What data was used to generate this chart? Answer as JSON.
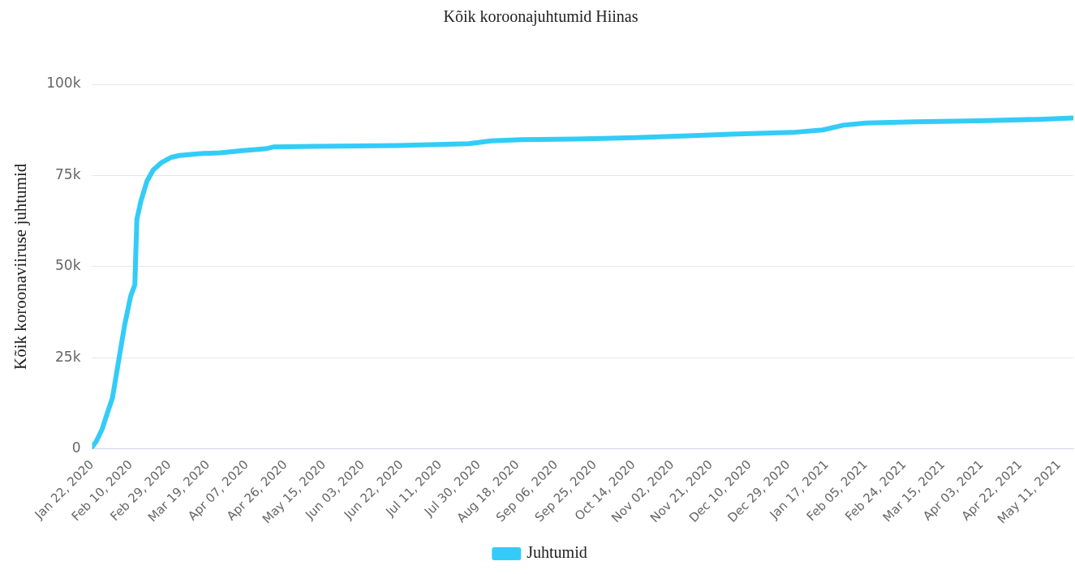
{
  "chart_data": {
    "type": "line",
    "title": "Kõik koroonajuhtumid Hiinas",
    "ylabel": "Kõik koroonaviiruse juhtumid",
    "x": [
      "2020-01-22",
      "2020-01-24",
      "2020-01-27",
      "2020-01-29",
      "2020-02-01",
      "2020-02-04",
      "2020-02-07",
      "2020-02-10",
      "2020-02-12",
      "2020-02-13",
      "2020-02-15",
      "2020-02-18",
      "2020-02-21",
      "2020-02-25",
      "2020-03-01",
      "2020-03-05",
      "2020-03-15",
      "2020-03-25",
      "2020-04-05",
      "2020-04-16",
      "2020-04-20",
      "2020-05-10",
      "2020-06-01",
      "2020-06-20",
      "2020-07-10",
      "2020-07-25",
      "2020-08-05",
      "2020-08-20",
      "2020-09-15",
      "2020-10-15",
      "2020-11-10",
      "2020-12-01",
      "2020-12-31",
      "2021-01-15",
      "2021-01-25",
      "2021-02-05",
      "2021-03-01",
      "2021-04-01",
      "2021-05-01",
      "2021-05-18"
    ],
    "series": [
      {
        "name": "Juhtumid",
        "color": "#33ccf8",
        "values": [
          600,
          2000,
          5500,
          9000,
          14000,
          24000,
          34000,
          42000,
          45000,
          63000,
          68000,
          73500,
          76500,
          78500,
          80000,
          80500,
          81000,
          81200,
          81800,
          82300,
          82800,
          83000,
          83100,
          83200,
          83500,
          83700,
          84500,
          84800,
          85000,
          85400,
          85900,
          86300,
          86800,
          87500,
          88800,
          89400,
          89700,
          90000,
          90400,
          90800
        ]
      }
    ],
    "xlim": [
      "2020-01-22",
      "2021-05-18"
    ],
    "xticks": [
      {
        "value": "2020-01-22",
        "label": "Jan 22, 2020"
      },
      {
        "value": "2020-02-10",
        "label": "Feb 10, 2020"
      },
      {
        "value": "2020-02-29",
        "label": "Feb 29, 2020"
      },
      {
        "value": "2020-03-19",
        "label": "Mar 19, 2020"
      },
      {
        "value": "2020-04-07",
        "label": "Apr 07, 2020"
      },
      {
        "value": "2020-04-26",
        "label": "Apr 26, 2020"
      },
      {
        "value": "2020-05-15",
        "label": "May 15, 2020"
      },
      {
        "value": "2020-06-03",
        "label": "Jun 03, 2020"
      },
      {
        "value": "2020-06-22",
        "label": "Jun 22, 2020"
      },
      {
        "value": "2020-07-11",
        "label": "Jul 11, 2020"
      },
      {
        "value": "2020-07-30",
        "label": "Jul 30, 2020"
      },
      {
        "value": "2020-08-18",
        "label": "Aug 18, 2020"
      },
      {
        "value": "2020-09-06",
        "label": "Sep 06, 2020"
      },
      {
        "value": "2020-09-25",
        "label": "Sep 25, 2020"
      },
      {
        "value": "2020-10-14",
        "label": "Oct 14, 2020"
      },
      {
        "value": "2020-11-02",
        "label": "Nov 02, 2020"
      },
      {
        "value": "2020-11-21",
        "label": "Nov 21, 2020"
      },
      {
        "value": "2020-12-10",
        "label": "Dec 10, 2020"
      },
      {
        "value": "2020-12-29",
        "label": "Dec 29, 2020"
      },
      {
        "value": "2021-01-17",
        "label": "Jan 17, 2021"
      },
      {
        "value": "2021-02-05",
        "label": "Feb 05, 2021"
      },
      {
        "value": "2021-02-24",
        "label": "Feb 24, 2021"
      },
      {
        "value": "2021-03-15",
        "label": "Mar 15, 2021"
      },
      {
        "value": "2021-04-03",
        "label": "Apr 03, 2021"
      },
      {
        "value": "2021-04-22",
        "label": "Apr 22, 2021"
      },
      {
        "value": "2021-05-11",
        "label": "May 11, 2021"
      }
    ],
    "ylim": [
      0,
      100000
    ],
    "yticks": [
      {
        "value": 0,
        "label": "0"
      },
      {
        "value": 25000,
        "label": "25k"
      },
      {
        "value": 50000,
        "label": "50k"
      },
      {
        "value": 75000,
        "label": "75k"
      },
      {
        "value": 100000,
        "label": "100k"
      }
    ],
    "grid": "y",
    "legend": "bottom",
    "marker": "none",
    "line_style": "solid"
  }
}
